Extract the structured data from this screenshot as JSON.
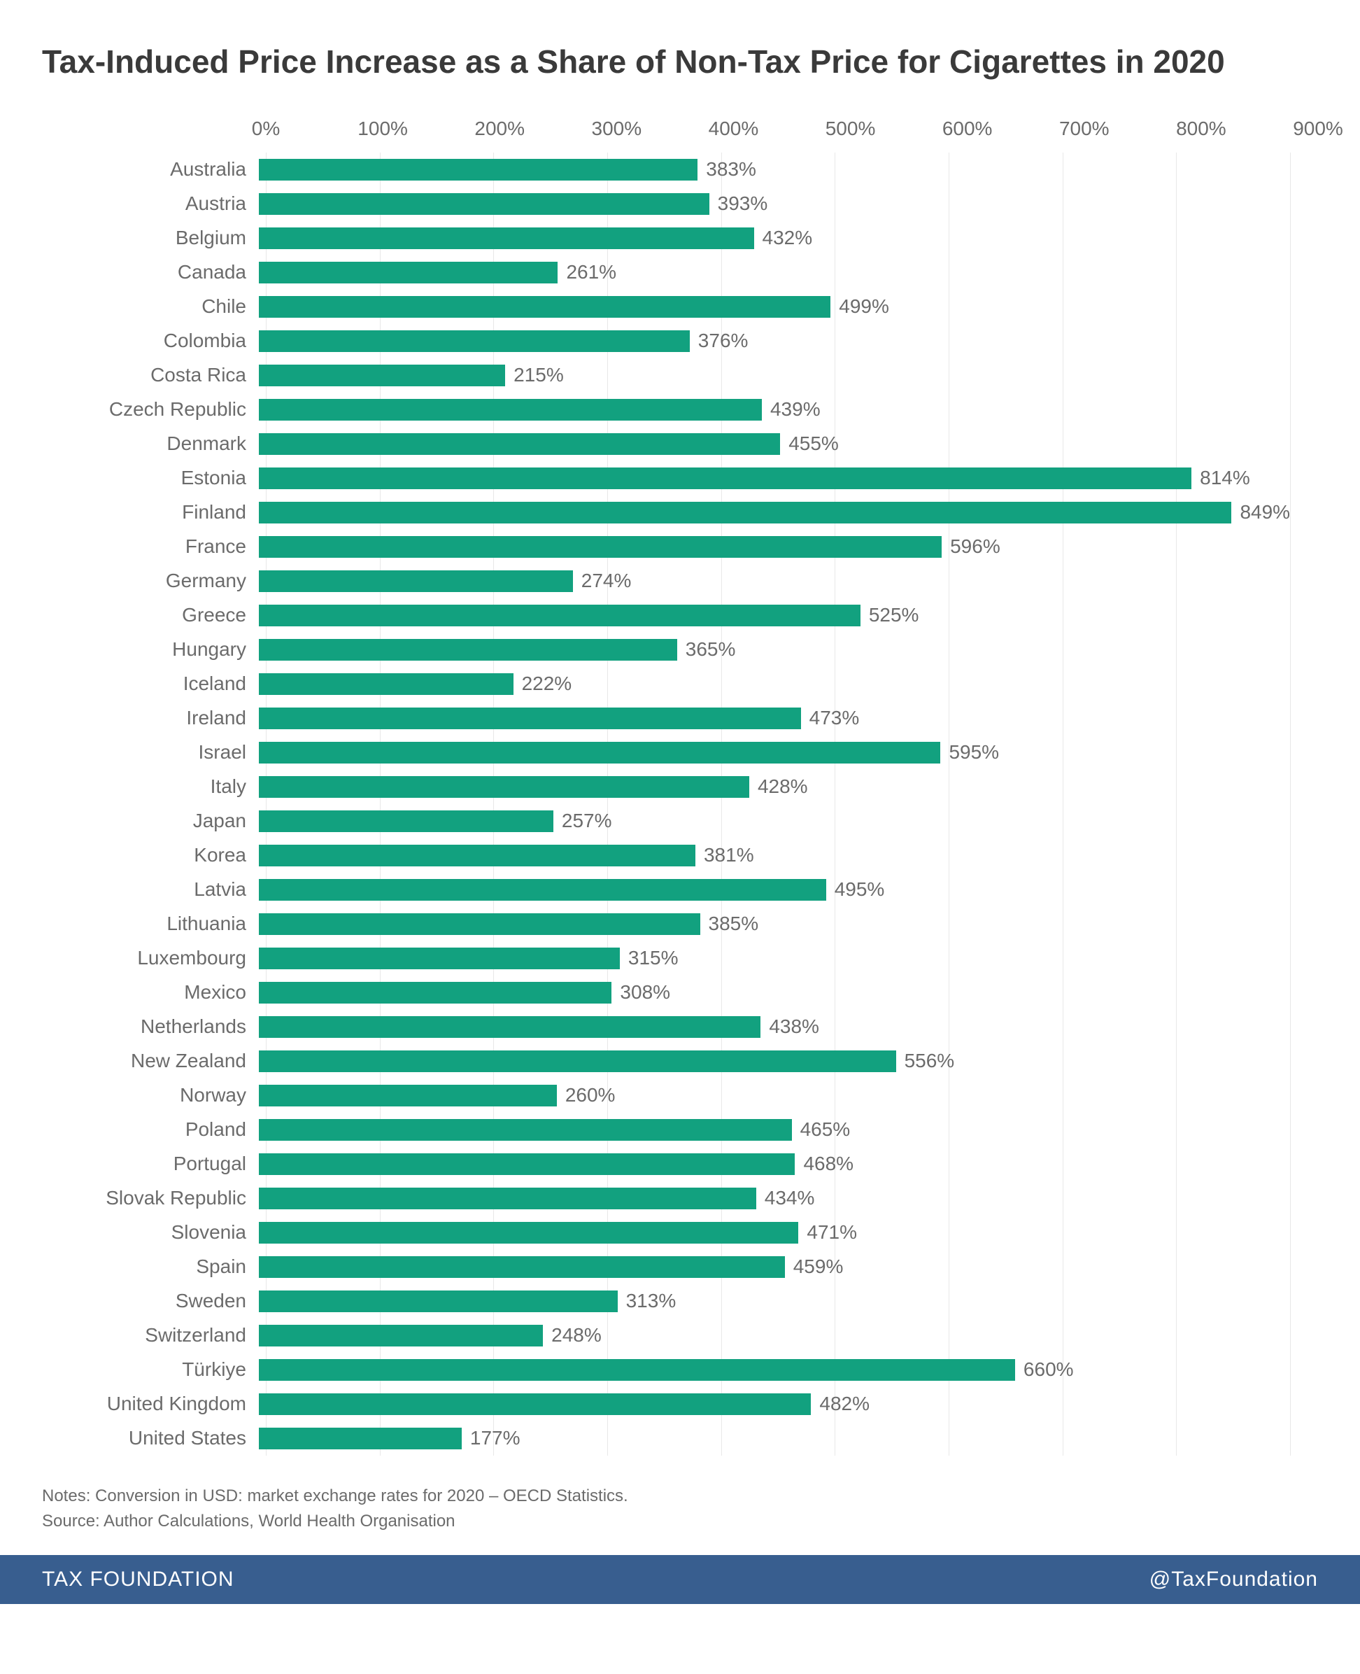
{
  "chart": {
    "title": "Tax-Induced Price Increase as a Share of Non-Tax Price for Cigarettes in 2020",
    "type": "bar",
    "orientation": "horizontal",
    "bar_color": "#12a17f",
    "background_color": "#ffffff",
    "grid_color": "#e8e8e8",
    "text_color": "#6b6b6b",
    "title_color": "#3a3a3a",
    "title_fontsize": 46,
    "label_fontsize": 28,
    "xmin": 0,
    "xmax": 900,
    "xtick_step": 100,
    "tick_suffix": "%",
    "value_suffix": "%",
    "data": [
      {
        "label": "Australia",
        "value": 383
      },
      {
        "label": "Austria",
        "value": 393
      },
      {
        "label": "Belgium",
        "value": 432
      },
      {
        "label": "Canada",
        "value": 261
      },
      {
        "label": "Chile",
        "value": 499
      },
      {
        "label": "Colombia",
        "value": 376
      },
      {
        "label": "Costa Rica",
        "value": 215
      },
      {
        "label": "Czech Republic",
        "value": 439
      },
      {
        "label": "Denmark",
        "value": 455
      },
      {
        "label": "Estonia",
        "value": 814
      },
      {
        "label": "Finland",
        "value": 849
      },
      {
        "label": "France",
        "value": 596
      },
      {
        "label": "Germany",
        "value": 274
      },
      {
        "label": "Greece",
        "value": 525
      },
      {
        "label": "Hungary",
        "value": 365
      },
      {
        "label": "Iceland",
        "value": 222
      },
      {
        "label": "Ireland",
        "value": 473
      },
      {
        "label": "Israel",
        "value": 595
      },
      {
        "label": "Italy",
        "value": 428
      },
      {
        "label": "Japan",
        "value": 257
      },
      {
        "label": "Korea",
        "value": 381
      },
      {
        "label": "Latvia",
        "value": 495
      },
      {
        "label": "Lithuania",
        "value": 385
      },
      {
        "label": "Luxembourg",
        "value": 315
      },
      {
        "label": "Mexico",
        "value": 308
      },
      {
        "label": "Netherlands",
        "value": 438
      },
      {
        "label": "New Zealand",
        "value": 556
      },
      {
        "label": "Norway",
        "value": 260
      },
      {
        "label": "Poland",
        "value": 465
      },
      {
        "label": "Portugal",
        "value": 468
      },
      {
        "label": "Slovak Republic",
        "value": 434
      },
      {
        "label": "Slovenia",
        "value": 471
      },
      {
        "label": "Spain",
        "value": 459
      },
      {
        "label": "Sweden",
        "value": 313
      },
      {
        "label": "Switzerland",
        "value": 248
      },
      {
        "label": "Türkiye",
        "value": 660
      },
      {
        "label": "United Kingdom",
        "value": 482
      },
      {
        "label": "United States",
        "value": 177
      }
    ],
    "notes_line1": "Notes: Conversion in USD: market exchange rates for 2020 – OECD Statistics.",
    "notes_line2": "Source: Author Calculations, World Health Organisation"
  },
  "footer": {
    "left": "TAX FOUNDATION",
    "right": "@TaxFoundation",
    "background_color": "#385e8f",
    "text_color": "#ffffff"
  }
}
